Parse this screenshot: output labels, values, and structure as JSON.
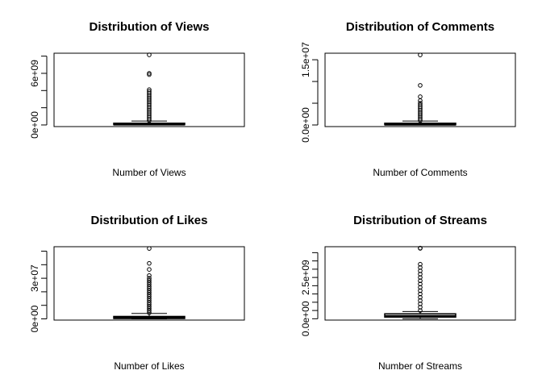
{
  "chart_data": [
    {
      "type": "boxplot",
      "title": "Distribution of Views",
      "xlabel": "Number of Views",
      "ylim": [
        -190000000,
        8340000000
      ],
      "yticks": [
        {
          "value": 0,
          "label": "0e+00"
        },
        {
          "value": 6000000000,
          "label": "6e+09"
        }
      ],
      "yticks_unlabeled": [
        2000000000,
        4000000000,
        8000000000
      ],
      "whisker_low": 0,
      "q1": 30000000,
      "median": 80000000,
      "q3": 200000000,
      "whisker_high": 450000000,
      "outliers": [
        500000000,
        700000000,
        900000000,
        1100000000,
        1300000000,
        1500000000,
        1700000000,
        1900000000,
        2100000000,
        2300000000,
        2500000000,
        2700000000,
        2900000000,
        3100000000,
        3300000000,
        3500000000,
        3700000000,
        3900000000,
        4100000000,
        5850000000,
        6000000000,
        8150000000
      ]
    },
    {
      "type": "boxplot",
      "title": "Distribution of Comments",
      "xlabel": "Number of Comments",
      "ylim": [
        -370000,
        16500000
      ],
      "yticks": [
        {
          "value": 0,
          "label": "0.0e+00"
        },
        {
          "value": 15000000,
          "label": "1.5e+07"
        }
      ],
      "yticks_unlabeled": [
        5000000,
        10000000
      ],
      "whisker_low": 0,
      "q1": 50000,
      "median": 150000,
      "q3": 400000,
      "whisker_high": 900000,
      "outliers": [
        1000000,
        1400000,
        1800000,
        2200000,
        2600000,
        3000000,
        3400000,
        3800000,
        4200000,
        4600000,
        5000000,
        5600000,
        6500000,
        9100000,
        16100000
      ]
    },
    {
      "type": "boxplot",
      "title": "Distribution of Likes",
      "xlabel": "Number of Likes",
      "ylim": [
        -900000,
        53300000
      ],
      "yticks": [
        {
          "value": 0,
          "label": "0e+00"
        },
        {
          "value": 30000000,
          "label": "3e+07"
        }
      ],
      "yticks_unlabeled": [
        10000000,
        20000000,
        40000000,
        50000000
      ],
      "whisker_low": 0,
      "q1": 300000,
      "median": 800000,
      "q3": 1800000,
      "whisker_high": 4000000,
      "outliers": [
        4500000,
        6000000,
        7500000,
        9000000,
        10500000,
        12000000,
        13500000,
        15000000,
        16500000,
        18000000,
        19500000,
        21000000,
        22500000,
        24000000,
        25500000,
        27000000,
        28500000,
        30000000,
        32000000,
        36500000,
        41000000,
        52000000
      ]
    },
    {
      "type": "boxplot",
      "title": "Distribution of Streams",
      "xlabel": "Number of Streams",
      "ylim": [
        -80000000,
        4360000000
      ],
      "yticks": [
        {
          "value": 0,
          "label": "0.0e+00"
        },
        {
          "value": 2500000000,
          "label": "2.5e+09"
        }
      ],
      "yticks_unlabeled": [
        500000000,
        1000000000,
        1500000000,
        2000000000,
        3000000000,
        3500000000,
        4000000000
      ],
      "whisker_low": 0,
      "q1": 100000000,
      "median": 150000000,
      "q3": 300000000,
      "whisker_high": 440000000,
      "outliers": [
        500000000,
        700000000,
        900000000,
        1100000000,
        1300000000,
        1500000000,
        1700000000,
        1900000000,
        2100000000,
        2300000000,
        2500000000,
        2700000000,
        2900000000,
        3100000000,
        3300000000,
        4260000000,
        4280000000
      ]
    }
  ]
}
